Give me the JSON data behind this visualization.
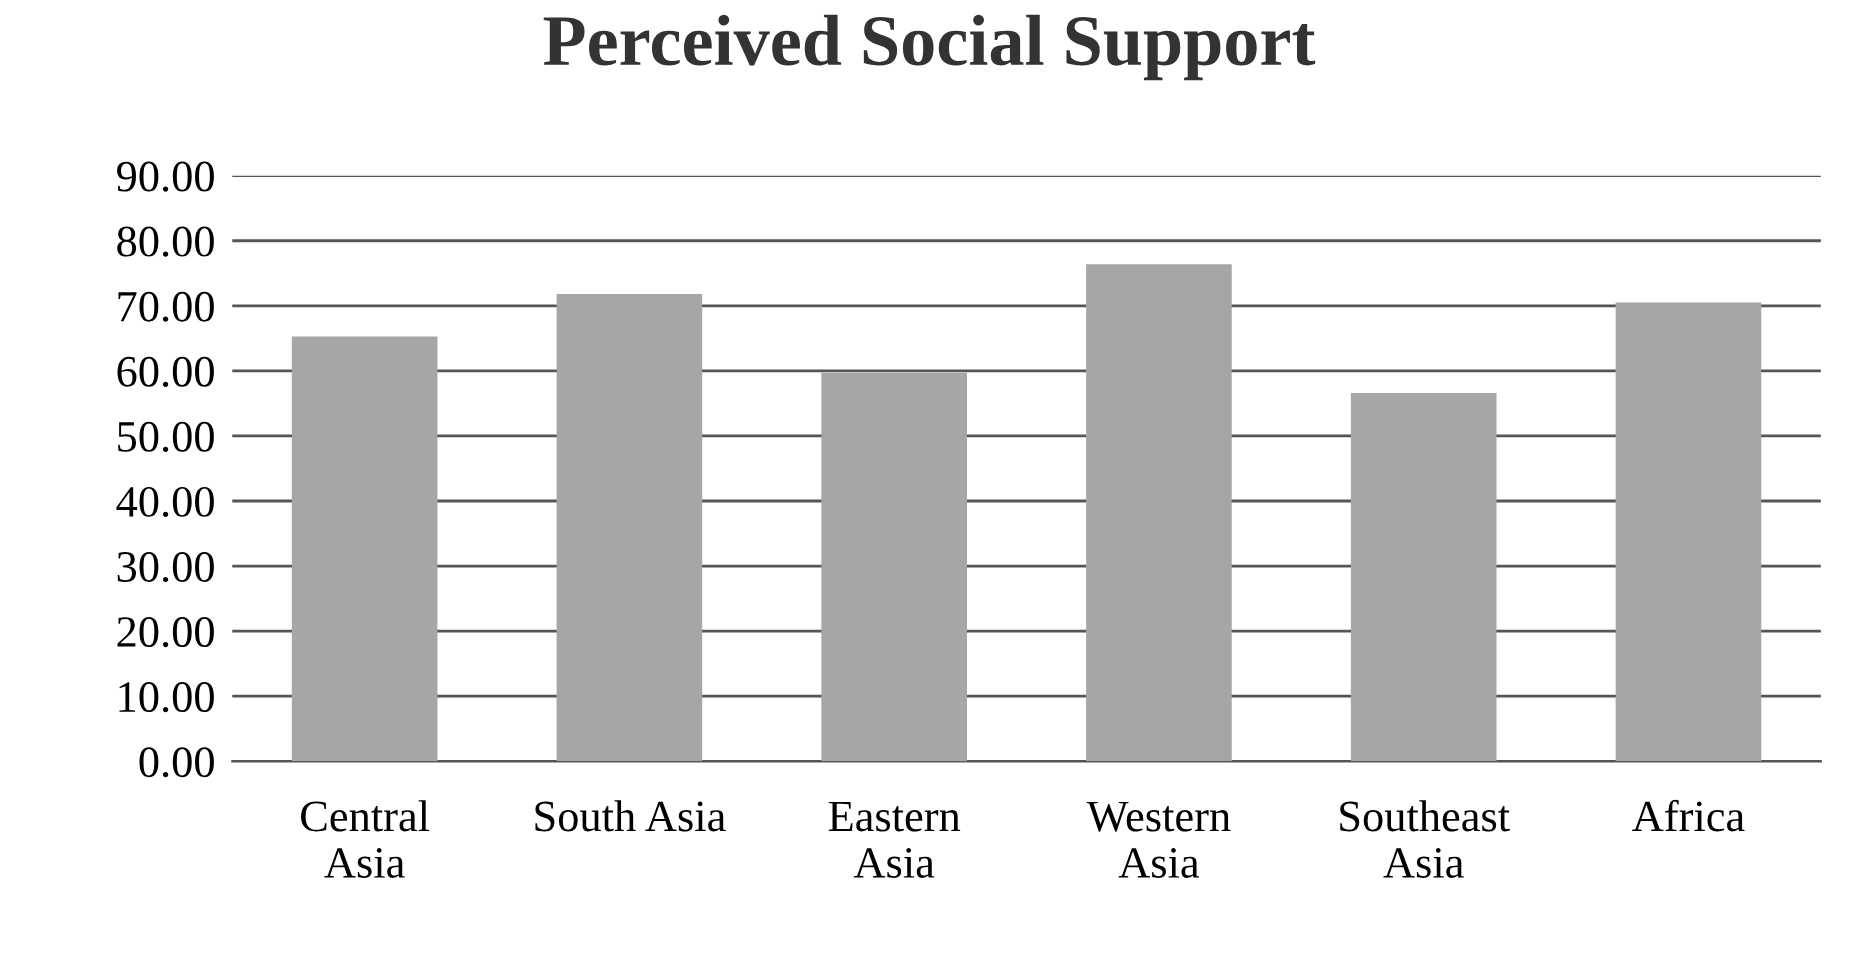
{
  "chart_data": {
    "type": "bar",
    "title": "Perceived Social Support",
    "categories": [
      "Central\nAsia",
      "South Asia",
      "Eastern\nAsia",
      "Western\nAsia",
      "Southeast\nAsia",
      "Africa"
    ],
    "values": [
      65.3,
      71.8,
      59.7,
      76.4,
      56.6,
      70.5
    ],
    "color": "#a6a6a6",
    "ylim": [
      0,
      90
    ],
    "yticks": [
      {
        "value": 0,
        "label": "0.00"
      },
      {
        "value": 10,
        "label": "10.00"
      },
      {
        "value": 20,
        "label": "20.00"
      },
      {
        "value": 30,
        "label": "30.00"
      },
      {
        "value": 40,
        "label": "40.00"
      },
      {
        "value": 50,
        "label": "50.00"
      },
      {
        "value": 60,
        "label": "60.00"
      },
      {
        "value": 70,
        "label": "70.00"
      },
      {
        "value": 80,
        "label": "80.00"
      },
      {
        "value": 90,
        "label": "90.00"
      }
    ],
    "grid": "y"
  }
}
